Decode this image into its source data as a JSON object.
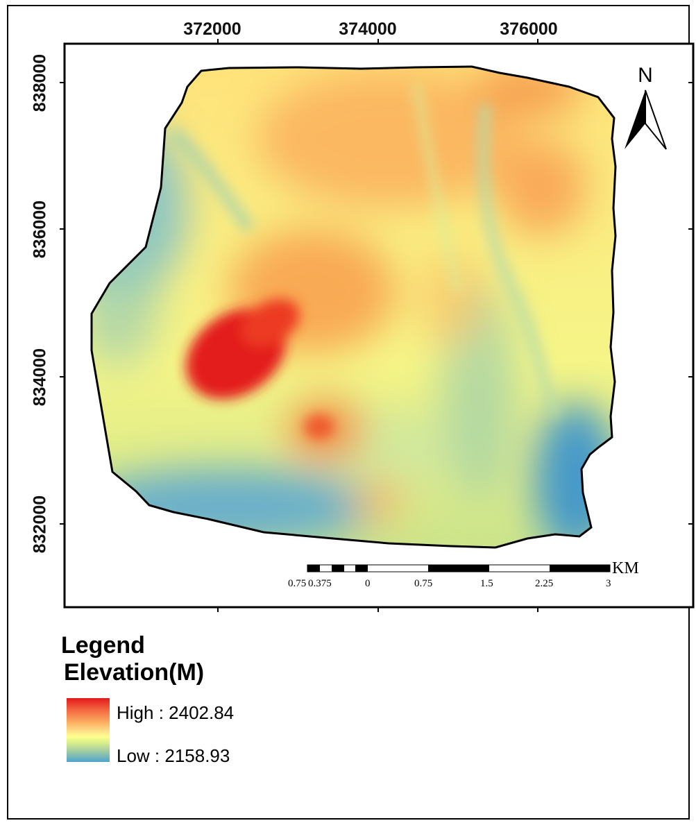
{
  "map": {
    "x_ticks": [
      "372000",
      "374000",
      "376000"
    ],
    "y_ticks": [
      "838000",
      "836000",
      "834000",
      "832000"
    ],
    "north_label": "N",
    "scale": {
      "labels": [
        "0.75",
        "0.375",
        "0",
        "0.75",
        "1.5",
        "2.25",
        "3"
      ],
      "unit": "KM"
    }
  },
  "legend": {
    "title": "Legend",
    "subtitle": "Elevation(M)",
    "high_label": "High : 2402.84",
    "low_label": "Low : 2158.93",
    "colors": {
      "high": "#e31a1c",
      "mid": "#ffff8c",
      "low": "#4ea3cf"
    }
  }
}
